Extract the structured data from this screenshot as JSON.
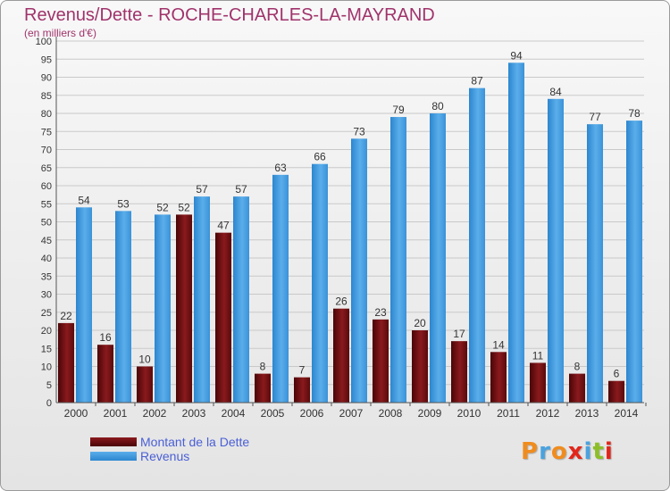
{
  "header": {
    "title": "Revenus/Dette - ROCHE-CHARLES-LA-MAYRAND",
    "subtitle": "(en milliers d'€)"
  },
  "colors": {
    "title": "#a0336b",
    "dette": "#7a0f12",
    "revenus": "#2e8fd6",
    "legend_text": "#4a5fd6"
  },
  "chart_data": {
    "type": "bar",
    "categories": [
      "2000",
      "2001",
      "2002",
      "2003",
      "2004",
      "2005",
      "2006",
      "2007",
      "2008",
      "2009",
      "2010",
      "2011",
      "2012",
      "2013",
      "2014"
    ],
    "series": [
      {
        "name": "Montant de la Dette",
        "values": [
          22,
          16,
          10,
          52,
          47,
          8,
          7,
          26,
          23,
          20,
          17,
          14,
          11,
          8,
          6
        ]
      },
      {
        "name": "Revenus",
        "values": [
          54,
          53,
          52,
          57,
          57,
          63,
          66,
          73,
          79,
          80,
          87,
          94,
          84,
          77,
          78
        ]
      }
    ],
    "ylim": [
      0,
      100
    ],
    "yticks": [
      0,
      5,
      10,
      15,
      20,
      25,
      30,
      35,
      40,
      45,
      50,
      55,
      60,
      65,
      70,
      75,
      80,
      85,
      90,
      95,
      100
    ],
    "grid": true,
    "legend_position": "bottom-left",
    "data_labels": true
  },
  "legend": {
    "items": [
      {
        "label": "Montant de la Dette"
      },
      {
        "label": "Revenus"
      }
    ]
  },
  "logo": {
    "text": "Proxiti",
    "letter_colors": [
      "#f08c1e",
      "#4aa3df",
      "#f08c1e",
      "#e2261b",
      "#4aa3df",
      "#8cbf26",
      "#e2261b"
    ]
  }
}
